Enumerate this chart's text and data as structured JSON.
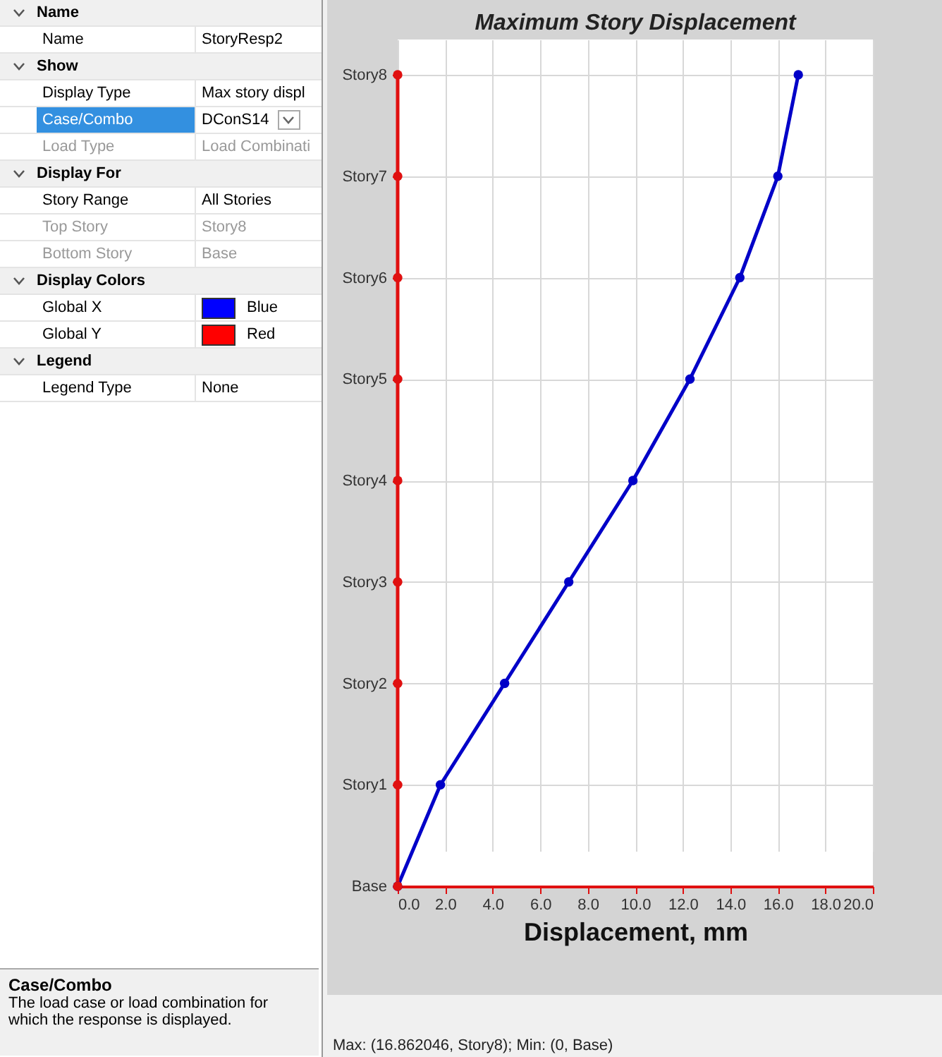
{
  "chart_data": [
    {
      "type": "other",
      "annotations": [
        "Name",
        "Name",
        "StoryResp2",
        "Show",
        "Display Type",
        "Max story displ",
        "Case/Combo",
        "DConS14",
        "Load Type",
        "Load Combinati",
        "Display For",
        "Story Range",
        "All Stories",
        "Top Story",
        "Story8",
        "Bottom Story",
        "Base",
        "Display Colors",
        "Global X",
        "Blue",
        "Global Y",
        "Red",
        "Legend",
        "Legend Type",
        "None",
        "Case/Combo",
        "The load case or load combination for which the response is displayed."
      ]
    },
    {
      "type": "line",
      "orientation": "horizontal",
      "title": "Maximum Story Displacement",
      "xlabel": "Displacement, mm",
      "categories": [
        "Story8",
        "Story7",
        "Story6",
        "Story5",
        "Story4",
        "Story3",
        "Story2",
        "Story1",
        "Base"
      ],
      "series": [
        {
          "color": "#0000c8",
          "values": [
            16.86,
            16.0,
            14.4,
            12.3,
            9.9,
            7.2,
            4.5,
            1.8,
            0
          ]
        },
        {
          "color": "#e01010",
          "values": [
            0,
            0,
            0,
            0,
            0,
            0,
            0,
            0,
            0
          ]
        }
      ],
      "xlim": [
        0,
        20
      ],
      "xticks": [
        {
          "value": 0,
          "label": "0.0"
        },
        {
          "value": 2,
          "label": "2.0"
        },
        {
          "value": 4,
          "label": "4.0"
        },
        {
          "value": 6,
          "label": "6.0"
        },
        {
          "value": 8,
          "label": "8.0"
        },
        {
          "value": 10,
          "label": "10.0"
        },
        {
          "value": 12,
          "label": "12.0"
        },
        {
          "value": 14,
          "label": "14.0"
        },
        {
          "value": 16,
          "label": "16.0"
        },
        {
          "value": 18,
          "label": "18.0"
        },
        {
          "value": 20,
          "label": "20.0"
        }
      ],
      "grid": true,
      "marker": "circle",
      "line_style": "solid",
      "annotations": [
        "Max: (16.862046, Story8);   Min: (0, Base)"
      ]
    }
  ]
}
